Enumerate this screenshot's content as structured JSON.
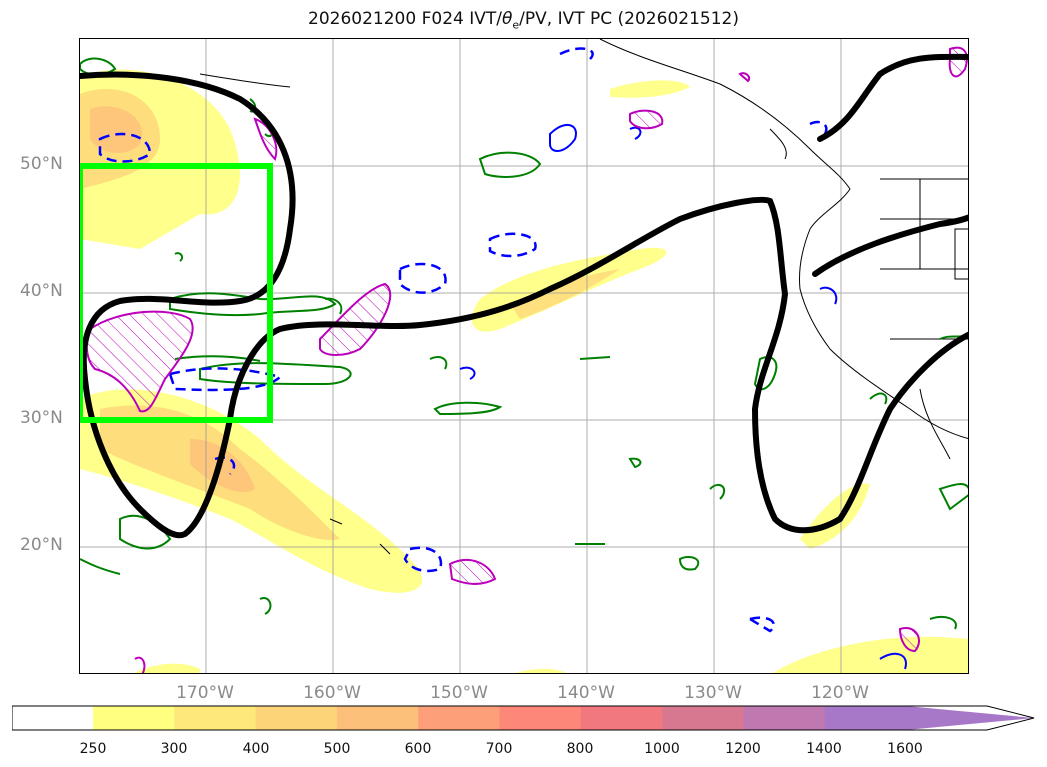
{
  "title": {
    "prefix": "2026021200 F024 IVT/",
    "theta": "θ",
    "sub": "e",
    "suffix": "/PV, IVT PC (2026021512)"
  },
  "map": {
    "lat_labels": [
      "50°N",
      "40°N",
      "30°N",
      "20°N"
    ],
    "lon_labels": [
      "170°W",
      "160°W",
      "150°W",
      "140°W",
      "130°W",
      "120°W"
    ],
    "highlight_box": {
      "lat_range": [
        30,
        50
      ],
      "lon_range": [
        180,
        -165
      ],
      "color": "#00ff00"
    },
    "contours": {
      "ivt_pc_color": "#000000",
      "theta_e_color": "#008000",
      "pv_negative_color": "#0000ff",
      "pv_positive_color": "#bb00bb"
    }
  },
  "colorbar": {
    "ticks": [
      "250",
      "300",
      "400",
      "500",
      "600",
      "700",
      "800",
      "1000",
      "1200",
      "1400",
      "1600"
    ],
    "colors": [
      "#ffff80",
      "#fee87a",
      "#fdd478",
      "#fdc07a",
      "#fda07a",
      "#fd887a",
      "#f0787e",
      "#d87890",
      "#c078b0",
      "#a878c8"
    ],
    "extend": "max"
  }
}
